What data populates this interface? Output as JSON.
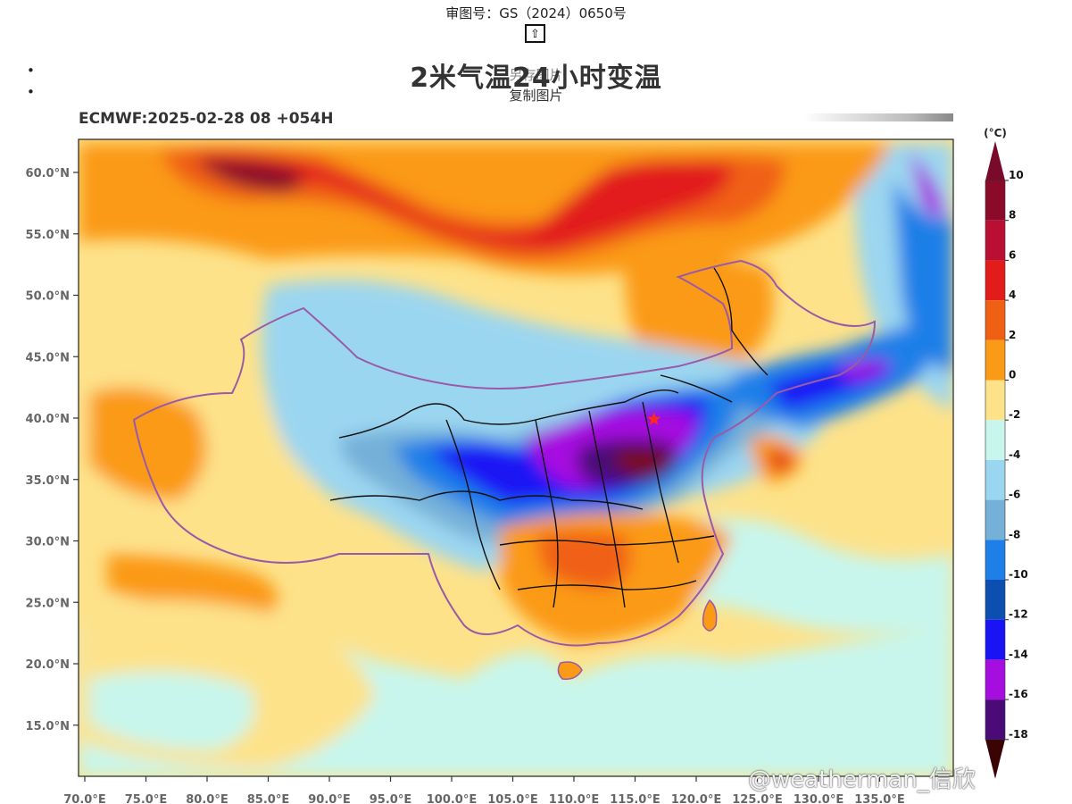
{
  "header": {
    "approval_number": "审图号：GS（2024）0650号",
    "up_icon_glyph": "⇧",
    "title": "2米气温24小时变温",
    "menu": {
      "save_label": "另存图片",
      "copy_label": "复制图片"
    },
    "bullet": "•"
  },
  "map": {
    "run_label": "ECMWF:2025-02-28 08 +054H",
    "lon_labels": [
      "70.0°E",
      "75.0°E",
      "80.0°E",
      "85.0°E",
      "90.0°E",
      "95.0°E",
      "100.0°E",
      "105.0°E",
      "110.0°E",
      "115.0°E",
      "120.0°E",
      "125.0°E",
      "130.0°E",
      "135.0°E"
    ],
    "lat_labels": [
      "60.0°N",
      "55.0°N",
      "50.0°N",
      "45.0°N",
      "40.0°N",
      "35.0°N",
      "30.0°N",
      "25.0°N",
      "20.0°N",
      "15.0°N"
    ],
    "lon_range": [
      70,
      140
    ],
    "lat_range": [
      10,
      63
    ],
    "city_marker_icon": "star-icon"
  },
  "legend": {
    "unit": "(°C)",
    "levels": [
      {
        "label": "10",
        "color": "#8b0a2a"
      },
      {
        "label": "8",
        "color": "#b80f33"
      },
      {
        "label": "6",
        "color": "#e21b1b"
      },
      {
        "label": "4",
        "color": "#f06014"
      },
      {
        "label": "2",
        "color": "#fb9a17"
      },
      {
        "label": "0",
        "color": "#fde28a"
      },
      {
        "label": "-2",
        "color": "#c8f6ec"
      },
      {
        "label": "-4",
        "color": "#9bd6f0"
      },
      {
        "label": "-6",
        "color": "#74b0d8"
      },
      {
        "label": "-8",
        "color": "#1f7fe8"
      },
      {
        "label": "-10",
        "color": "#0c4fb0"
      },
      {
        "label": "-12",
        "color": "#1a14f5"
      },
      {
        "label": "-14",
        "color": "#a60ee0"
      },
      {
        "label": "-16",
        "color": "#4a0a78"
      },
      {
        "label": "-18",
        "color": "#7a0a12"
      }
    ],
    "top_arrow_color": "#7a0a2a",
    "bottom_arrow_color": "#3a0404"
  },
  "watermark": "@weatherman_信欣"
}
